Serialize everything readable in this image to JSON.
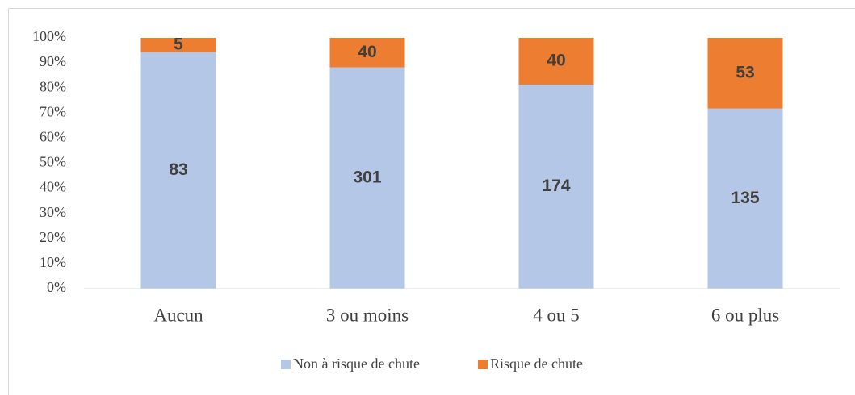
{
  "chart_data": {
    "type": "bar",
    "stacked": "percent",
    "categories": [
      "Aucun",
      "3 ou moins",
      "4 ou 5",
      "6 ou plus"
    ],
    "series": [
      {
        "name": "Non à risque de chute",
        "color": "#b4c7e7",
        "values": [
          83,
          301,
          174,
          135
        ]
      },
      {
        "name": "Risque de chute",
        "color": "#ed7d31",
        "values": [
          5,
          40,
          40,
          53
        ]
      }
    ],
    "ylim": [
      0,
      100
    ],
    "yticks": [
      {
        "value": 0,
        "label": "0%"
      },
      {
        "value": 10,
        "label": "10%"
      },
      {
        "value": 20,
        "label": "20%"
      },
      {
        "value": 30,
        "label": "30%"
      },
      {
        "value": 40,
        "label": "40%"
      },
      {
        "value": 50,
        "label": "50%"
      },
      {
        "value": 60,
        "label": "60%"
      },
      {
        "value": 70,
        "label": "70%"
      },
      {
        "value": 80,
        "label": "80%"
      },
      {
        "value": 90,
        "label": "90%"
      },
      {
        "value": 100,
        "label": "100%"
      }
    ],
    "grid": false,
    "legend": "bottom"
  }
}
